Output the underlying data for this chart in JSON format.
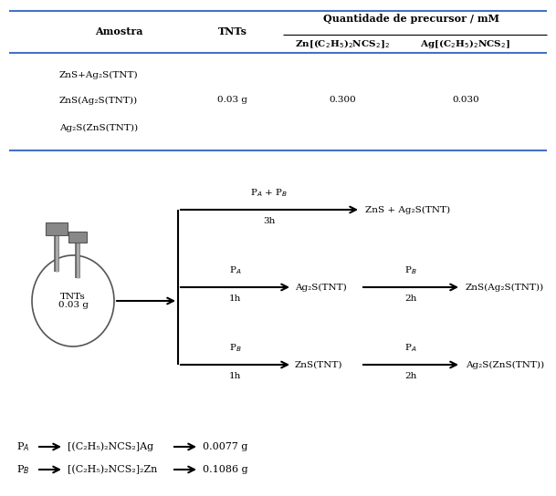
{
  "bg_color": "#ffffff",
  "fig_w": 6.09,
  "fig_h": 5.44,
  "table": {
    "rows": [
      [
        "ZnS+Ag₂S(TNT)",
        "",
        "",
        ""
      ],
      [
        "ZnS(Ag₂S(TNT))",
        "0.03 g",
        "0.300",
        "0.030"
      ],
      [
        "Ag₂S(ZnS(TNT))",
        "",
        "",
        ""
      ]
    ],
    "line_color": "#4472c4",
    "line_color2": "#000000"
  },
  "diagram": {
    "flask_label_line1": "TNTs",
    "flask_label_line2": "0.03 g",
    "paths": [
      {
        "branch_label": "P$_A$ + P$_B$",
        "time": "3h",
        "intermediate": null,
        "inter_label": null,
        "inter_time": null,
        "final": "ZnS + Ag₂S(TNT)"
      },
      {
        "branch_label": "P$_A$",
        "time": "1h",
        "intermediate": "Ag₂S(TNT)",
        "inter_label": "P$_B$",
        "inter_time": "2h",
        "final": "ZnS(Ag₂S(TNT))"
      },
      {
        "branch_label": "P$_B$",
        "time": "1h",
        "intermediate": "ZnS(TNT)",
        "inter_label": "P$_A$",
        "inter_time": "2h",
        "final": "Ag₂S(ZnS(TNT))"
      }
    ],
    "legend": [
      {
        "label": "P$_A$",
        "formula": "[(C₂H₅)₂NCS₂]Ag",
        "value": "0.0077 g"
      },
      {
        "label": "P$_B$",
        "formula": "[(C₂H₅)₂NCS₂]₂Zn",
        "value": "0.1086 g"
      }
    ]
  }
}
